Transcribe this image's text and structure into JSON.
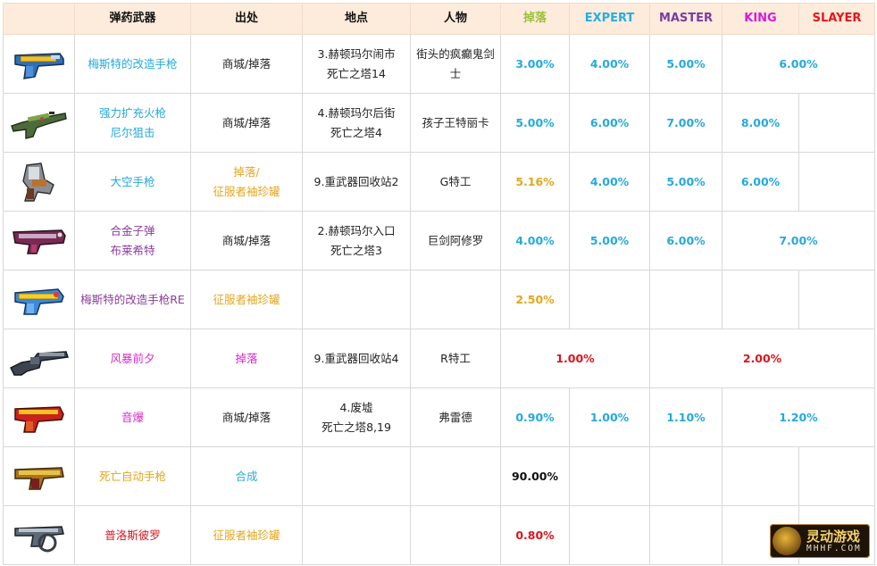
{
  "header": {
    "weapon": "弹药武器",
    "source": "出处",
    "location": "地点",
    "character": "人物",
    "drop": "掉落",
    "expert": "EXPERT",
    "master": "MASTER",
    "king": "KING",
    "slayer": "SLAYER"
  },
  "header_colors": {
    "drop": "#9bc13a",
    "expert": "#27aee0",
    "master": "#7b3ca0",
    "king": "#d61bd6",
    "slayer": "#e8141c"
  },
  "colors": {
    "cyan": "#25a9dc",
    "gold": "#e3a620",
    "purple": "#8a3c9c",
    "magenta": "#d82bc8",
    "red": "#d8161e",
    "black": "#111111"
  },
  "rows": [
    {
      "icon": "blue-yellow-pistol-icon",
      "name": [
        "梅斯特的改造手枪"
      ],
      "name_color": "#25a9dc",
      "source": "商城/掉落",
      "source_color": "#222222",
      "location": [
        "3.赫顿玛尔闹市",
        "死亡之塔14"
      ],
      "character": [
        "街头的疯癫鬼剑",
        "士"
      ],
      "drop": "3.00%",
      "drop_color": "#25a9dc",
      "expert": "4.00%",
      "master": "5.00%",
      "king_slayer": "6.00%"
    },
    {
      "icon": "green-rifle-icon",
      "name": [
        "强力扩充火枪",
        "尼尔狙击"
      ],
      "name_color": "#25a9dc",
      "source": "商城/掉落",
      "source_color": "#222222",
      "location": [
        "4.赫顿玛尔后街",
        "死亡之塔4"
      ],
      "character": [
        "孩子王特丽卡"
      ],
      "drop": "5.00%",
      "drop_color": "#25a9dc",
      "expert": "6.00%",
      "master": "7.00%",
      "king": "8.00%",
      "slayer": ""
    },
    {
      "icon": "space-pistol-icon",
      "name": [
        "大空手枪"
      ],
      "name_color": "#25a9dc",
      "source": [
        "掉落/",
        "征服者袖珍罐"
      ],
      "source_color": "#e3a620",
      "location": [
        "9.重武器回收站2"
      ],
      "character": [
        "G特工"
      ],
      "drop": "5.16%",
      "drop_color": "#e3a620",
      "expert": "4.00%",
      "master": "5.00%",
      "king": "6.00%",
      "slayer": ""
    },
    {
      "icon": "alloy-bullet-pistol-icon",
      "name": [
        "合金子弹",
        "布莱希特"
      ],
      "name_color": "#8a3c9c",
      "source": "商城/掉落",
      "source_color": "#222222",
      "location": [
        "2.赫顿玛尔入口",
        "死亡之塔3"
      ],
      "character": [
        "巨剑阿修罗"
      ],
      "drop": "4.00%",
      "drop_color": "#25a9dc",
      "expert": "5.00%",
      "master": "6.00%",
      "king_slayer": "7.00%"
    },
    {
      "icon": "blue-yellow-pistol-re-icon",
      "name": [
        "梅斯特的改造手枪RE"
      ],
      "name_color": "#8a3c9c",
      "source": "征服者袖珍罐",
      "source_color": "#e3a620",
      "location": [],
      "character": [],
      "drop": "2.50%",
      "drop_color": "#e3a620"
    },
    {
      "icon": "storm-revolver-icon",
      "name": [
        "风暴前夕"
      ],
      "name_color": "#d82bc8",
      "source": "掉落",
      "source_color": "#d82bc8",
      "location": [
        "9.重武器回收站4"
      ],
      "character": [
        "R特工"
      ],
      "drop_expert": "1.00%",
      "master_slayer": "2.00%",
      "split_color": "#d8161e"
    },
    {
      "icon": "red-pistol-icon",
      "name": [
        "音爆"
      ],
      "name_color": "#d82bc8",
      "source": "商城/掉落",
      "source_color": "#222222",
      "location": [
        "4.废墟",
        "死亡之塔8,19"
      ],
      "character": [
        "弗雷德"
      ],
      "drop": "0.90%",
      "drop_color": "#25a9dc",
      "expert": "1.00%",
      "master": "1.10%",
      "king_slayer": "1.20%"
    },
    {
      "icon": "death-auto-pistol-icon",
      "name": [
        "死亡自动手枪"
      ],
      "name_color": "#e3a620",
      "source": "合成",
      "source_color": "#25a9dc",
      "location": [],
      "character": [],
      "drop": "90.00%",
      "drop_color": "#111111"
    },
    {
      "icon": "prospero-pistol-icon",
      "name": [
        "普洛斯彼罗"
      ],
      "name_color": "#d8161e",
      "source": "征服者袖珍罐",
      "source_color": "#e3a620",
      "location": [],
      "character": [],
      "drop": "0.80%",
      "drop_color": "#d8161e"
    }
  ],
  "watermark": {
    "cn": "灵动游戏",
    "en": "MHHF.COM"
  }
}
